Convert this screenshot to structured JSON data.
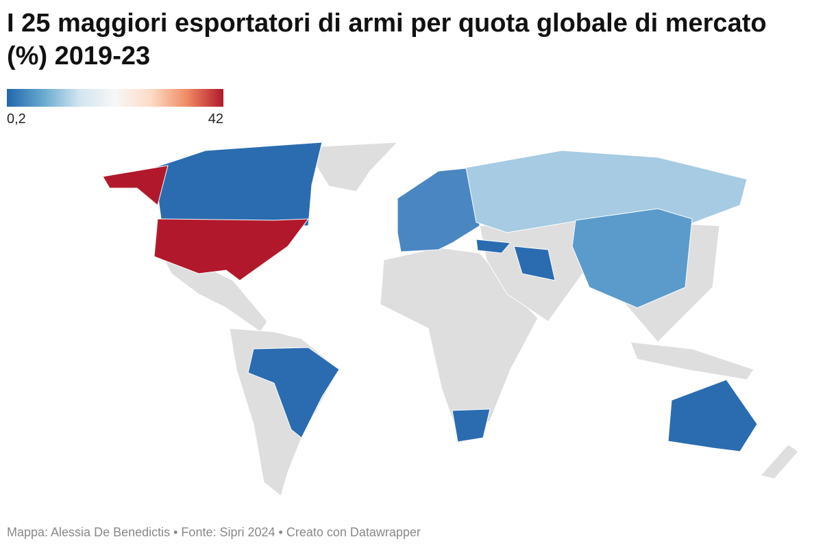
{
  "title": "I 25 maggiori esportatori di armi per quota globale di mercato (%) 2019-23",
  "legend": {
    "min": {
      "value": 0.2,
      "label": "0,2"
    },
    "max": 42,
    "colors": [
      "#2166ac",
      "#67a9cf",
      "#d1e5f0",
      "#f7f7f7",
      "#fddbc7",
      "#ef8a62",
      "#b2182b"
    ]
  },
  "footer": "Mappa: Alessia De Benedictis • Fonte: Sipri 2024 • Creato con Datawrapper"
}
